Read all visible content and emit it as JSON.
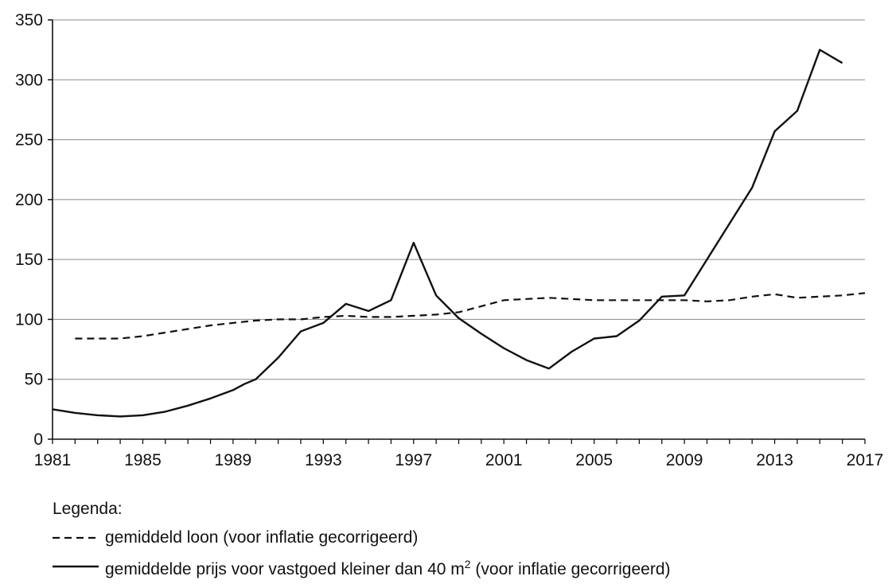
{
  "chart_data": {
    "type": "line",
    "title": "",
    "xlabel": "",
    "ylabel": "",
    "xlim": [
      1981,
      2017
    ],
    "ylim": [
      0,
      350
    ],
    "x_ticks": [
      "1981",
      "1985",
      "1989",
      "1993",
      "1997",
      "2001",
      "2005",
      "2009",
      "2013",
      "2017"
    ],
    "y_ticks": [
      "0",
      "50",
      "100",
      "150",
      "200",
      "250",
      "300",
      "350"
    ],
    "grid": "horizontal",
    "legend_placement": "bottom",
    "series": [
      {
        "name": "gemiddeld loon (voor inflatie gecorrigeerd)",
        "style": "dashed",
        "color": "#111111",
        "points": [
          [
            1982,
            84
          ],
          [
            1983,
            84
          ],
          [
            1984,
            84
          ],
          [
            1985,
            86
          ],
          [
            1986,
            89
          ],
          [
            1987,
            92
          ],
          [
            1988,
            95
          ],
          [
            1989,
            97
          ],
          [
            1990,
            99
          ],
          [
            1991,
            100
          ],
          [
            1992,
            100
          ],
          [
            1993,
            102
          ],
          [
            1994,
            103
          ],
          [
            1995,
            102
          ],
          [
            1996,
            102
          ],
          [
            1997,
            103
          ],
          [
            1998,
            104
          ],
          [
            1999,
            106
          ],
          [
            2000,
            111
          ],
          [
            2001,
            116
          ],
          [
            2002,
            117
          ],
          [
            2003,
            118
          ],
          [
            2004,
            117
          ],
          [
            2005,
            116
          ],
          [
            2006,
            116
          ],
          [
            2007,
            116
          ],
          [
            2008,
            116
          ],
          [
            2009,
            116
          ],
          [
            2010,
            115
          ],
          [
            2011,
            116
          ],
          [
            2012,
            119
          ],
          [
            2013,
            121
          ],
          [
            2014,
            118
          ],
          [
            2015,
            119
          ],
          [
            2016,
            120
          ],
          [
            2017,
            122
          ]
        ]
      },
      {
        "name": "gemiddelde prijs voor vastgoed kleiner dan 40 m",
        "name_superscript": "2",
        "name_suffix": " (voor inflatie gecorrigeerd)",
        "style": "solid",
        "color": "#111111",
        "points": [
          [
            1981,
            25
          ],
          [
            1982,
            22
          ],
          [
            1983,
            20
          ],
          [
            1984,
            19
          ],
          [
            1985,
            20
          ],
          [
            1986,
            23
          ],
          [
            1987,
            28
          ],
          [
            1988,
            34
          ],
          [
            1989,
            41
          ],
          [
            1989.5,
            46
          ],
          [
            1990,
            50
          ],
          [
            1991,
            68
          ],
          [
            1992,
            90
          ],
          [
            1993,
            97
          ],
          [
            1994,
            113
          ],
          [
            1995,
            107
          ],
          [
            1996,
            116
          ],
          [
            1997,
            164
          ],
          [
            1998,
            120
          ],
          [
            1999,
            101
          ],
          [
            2000,
            88
          ],
          [
            2001,
            76
          ],
          [
            2002,
            66
          ],
          [
            2003,
            59
          ],
          [
            2004,
            73
          ],
          [
            2005,
            84
          ],
          [
            2006,
            86
          ],
          [
            2007,
            99
          ],
          [
            2008,
            119
          ],
          [
            2009,
            120
          ],
          [
            2010,
            150
          ],
          [
            2011,
            180
          ],
          [
            2012,
            210
          ],
          [
            2013,
            257
          ],
          [
            2014,
            274
          ],
          [
            2015,
            325
          ],
          [
            2016,
            314
          ]
        ]
      }
    ]
  },
  "legend": {
    "title": "Legenda:"
  }
}
